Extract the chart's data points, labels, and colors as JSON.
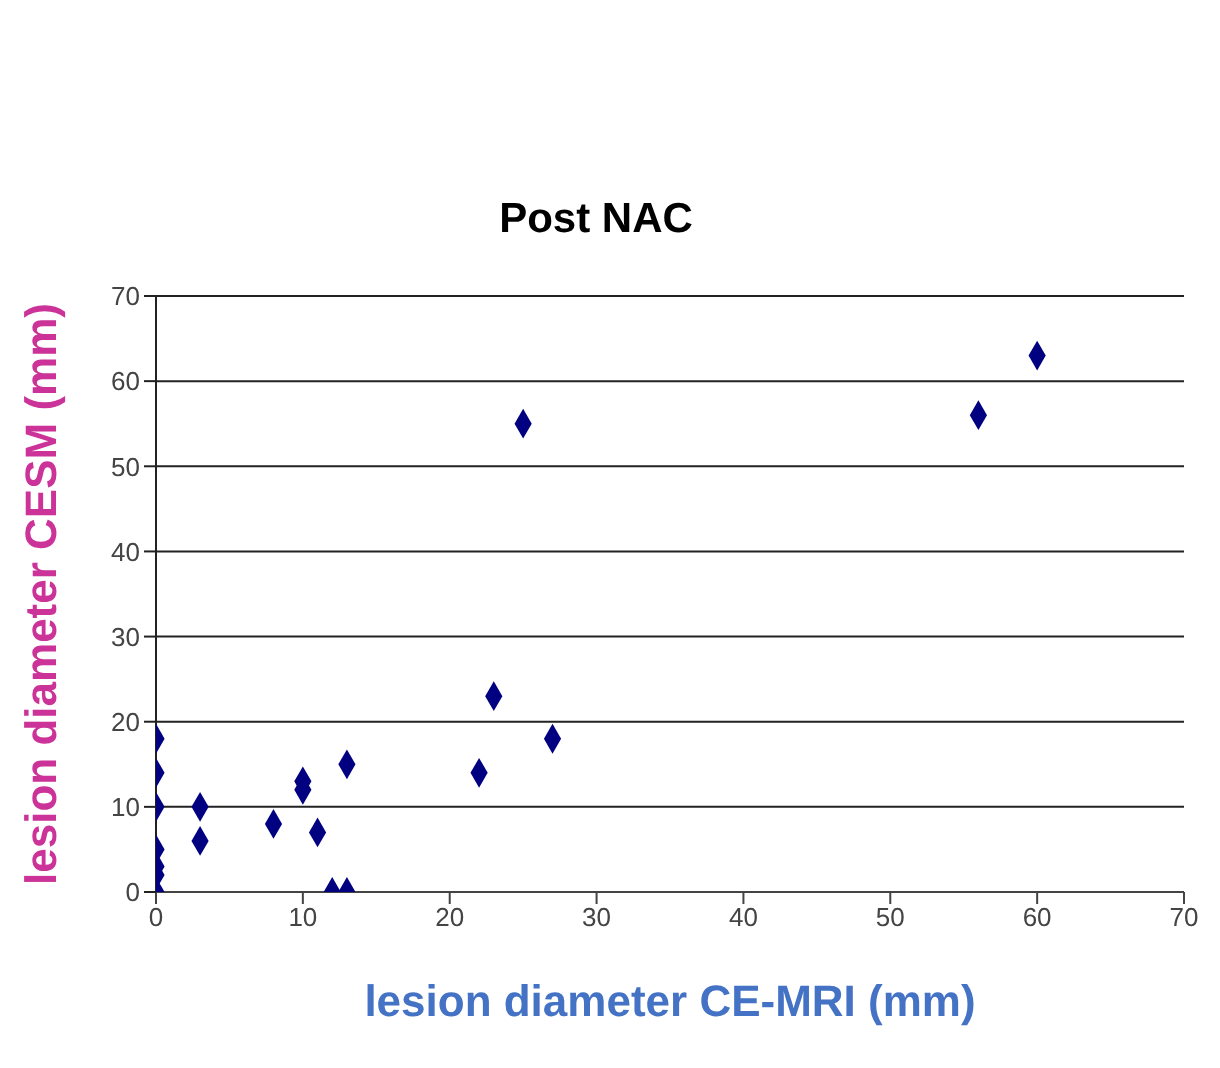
{
  "chart_data": {
    "type": "scatter",
    "title": "Post NAC",
    "xlabel": "lesion diameter CE-MRI (mm)",
    "ylabel": "lesion diameter CESM (mm)",
    "x": [
      0,
      0,
      0,
      0,
      0,
      0,
      0,
      3,
      3,
      8,
      10,
      10,
      11,
      12,
      13,
      13,
      22,
      23,
      25,
      27,
      56,
      60
    ],
    "series": [
      {
        "color": "#000080",
        "values": [
          18,
          14,
          10,
          5,
          3,
          2,
          0,
          10,
          6,
          8,
          13,
          12,
          7,
          0,
          0,
          15,
          14,
          23,
          55,
          18,
          56,
          63
        ]
      }
    ],
    "xlim": [
      0,
      70
    ],
    "xticks": [
      0,
      10,
      20,
      30,
      40,
      50,
      60,
      70
    ],
    "ylim": [
      0,
      70
    ],
    "yticks": [
      0,
      10,
      20,
      30,
      40,
      50,
      60,
      70
    ],
    "grid": "y",
    "legend": false,
    "marker": "diamond"
  }
}
